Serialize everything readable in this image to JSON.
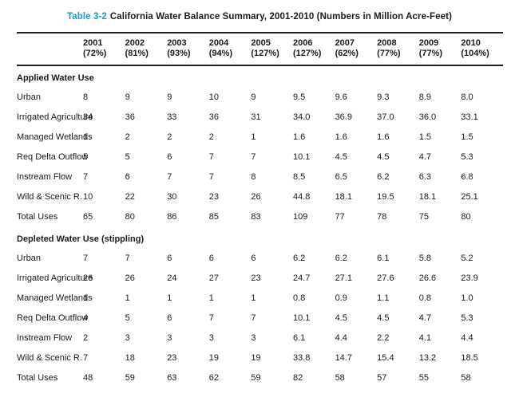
{
  "title": {
    "label": "Table 3-2",
    "text": "California Water Balance Summary, 2001-2010 (Numbers in Million Acre-Feet)"
  },
  "colors": {
    "caption_accent": "#1f97c8",
    "text": "#1b1b1b",
    "rule": "#1f1f1f"
  },
  "table": {
    "columns": [
      {
        "year": "2001",
        "pct": "(72%)"
      },
      {
        "year": "2002",
        "pct": "(81%)"
      },
      {
        "year": "2003",
        "pct": "(93%)"
      },
      {
        "year": "2004",
        "pct": "(94%)"
      },
      {
        "year": "2005",
        "pct": "(127%)"
      },
      {
        "year": "2006",
        "pct": "(127%)"
      },
      {
        "year": "2007",
        "pct": "(62%)"
      },
      {
        "year": "2008",
        "pct": "(77%)"
      },
      {
        "year": "2009",
        "pct": "(77%)"
      },
      {
        "year": "2010",
        "pct": "(104%)"
      }
    ],
    "sections": [
      {
        "header": "Applied Water Use",
        "rows": [
          {
            "label": "Urban",
            "values": [
              "8",
              "9",
              "9",
              "10",
              "9",
              "9.5",
              "9.6",
              "9.3",
              "8.9",
              "8.0"
            ]
          },
          {
            "label": "Irrigated Agriculture",
            "values": [
              "34",
              "36",
              "33",
              "36",
              "31",
              "34.0",
              "36.9",
              "37.0",
              "36.0",
              "33.1"
            ]
          },
          {
            "label": "Managed Wetlands",
            "values": [
              "1",
              "2",
              "2",
              "2",
              "1",
              "1.6",
              "1.6",
              "1.6",
              "1.5",
              "1.5"
            ]
          },
          {
            "label": "Req Delta Outflow",
            "values": [
              "5",
              "5",
              "6",
              "7",
              "7",
              "10.1",
              "4.5",
              "4.5",
              "4.7",
              "5.3"
            ]
          },
          {
            "label": "Instream Flow",
            "values": [
              "7",
              "6",
              "7",
              "7",
              "8",
              "8.5",
              "6.5",
              "6.2",
              "6.3",
              "6.8"
            ]
          },
          {
            "label": "Wild & Scenic R.",
            "values": [
              "10",
              "22",
              "30",
              "23",
              "26",
              "44.8",
              "18.1",
              "19.5",
              "18.1",
              "25.1"
            ]
          },
          {
            "label": "Total Uses",
            "values": [
              "65",
              "80",
              "86",
              "85",
              "83",
              "109",
              "77",
              "78",
              "75",
              "80"
            ]
          }
        ]
      },
      {
        "header": "Depleted Water Use (stippling)",
        "rows": [
          {
            "label": "Urban",
            "values": [
              "7",
              "7",
              "6",
              "6",
              "6",
              "6.2",
              "6.2",
              "6.1",
              "5.8",
              "5.2"
            ]
          },
          {
            "label": "Irrigated Agriculture",
            "values": [
              "26",
              "26",
              "24",
              "27",
              "23",
              "24.7",
              "27.1",
              "27.6",
              "26.6",
              "23.9"
            ]
          },
          {
            "label": "Managed Wetlands",
            "values": [
              "1",
              "1",
              "1",
              "1",
              "1",
              "0.8",
              "0.9",
              "1.1",
              "0.8",
              "1.0"
            ]
          },
          {
            "label": "Req Delta Outflow",
            "values": [
              "4",
              "5",
              "6",
              "7",
              "7",
              "10.1",
              "4.5",
              "4.5",
              "4.7",
              "5.3"
            ]
          },
          {
            "label": "Instream Flow",
            "values": [
              "2",
              "3",
              "3",
              "3",
              "3",
              "6.1",
              "4.4",
              "2.2",
              "4.1",
              "4.4"
            ]
          },
          {
            "label": "Wild & Scenic R.",
            "values": [
              "7",
              "18",
              "23",
              "19",
              "19",
              "33.8",
              "14.7",
              "15.4",
              "13.2",
              "18.5"
            ]
          },
          {
            "label": "Total Uses",
            "values": [
              "48",
              "59",
              "63",
              "62",
              "59",
              "82",
              "58",
              "57",
              "55",
              "58"
            ]
          }
        ]
      }
    ]
  }
}
